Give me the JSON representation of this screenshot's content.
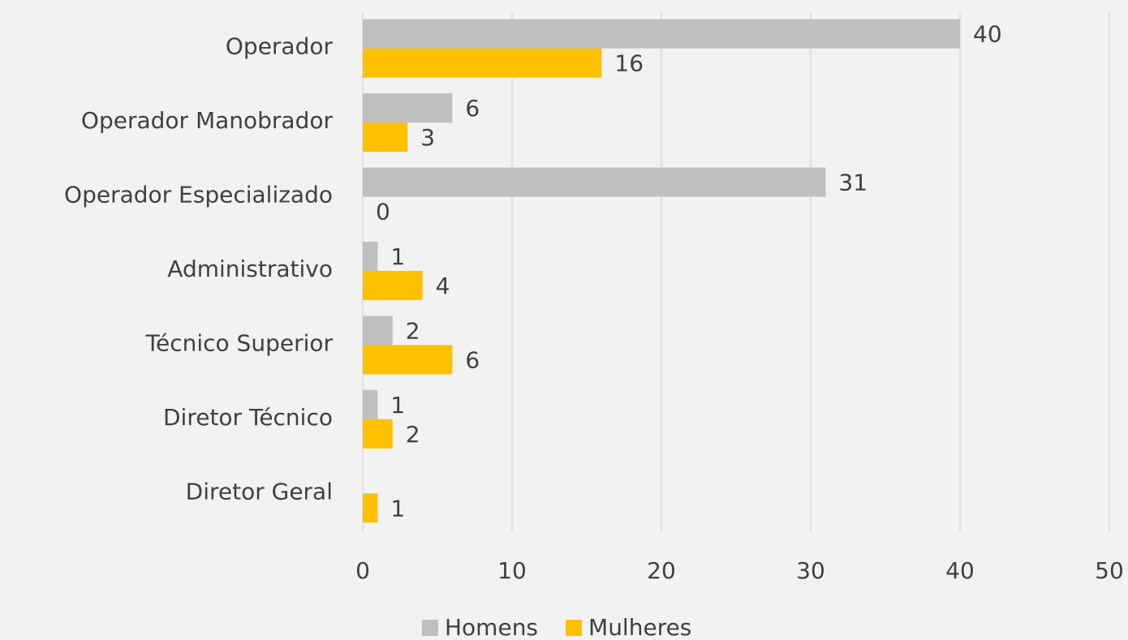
{
  "chart_data": {
    "type": "hbar",
    "categories": [
      "Operador",
      "Operador Manobrador",
      "Operador Especializado",
      "Administrativo",
      "Técnico Superior",
      "Diretor Técnico",
      "Diretor Geral"
    ],
    "series": [
      {
        "name": "Homens",
        "color": "#bfbfbf",
        "values": [
          40,
          6,
          31,
          1,
          2,
          1,
          null
        ]
      },
      {
        "name": "Mulheres",
        "color": "#ffc000",
        "values": [
          16,
          3,
          0,
          4,
          6,
          2,
          1
        ]
      }
    ],
    "xlim": [
      0,
      50
    ],
    "xticks": [
      0,
      10,
      20,
      30,
      40,
      50
    ],
    "grid": true,
    "legend": "bottom"
  }
}
